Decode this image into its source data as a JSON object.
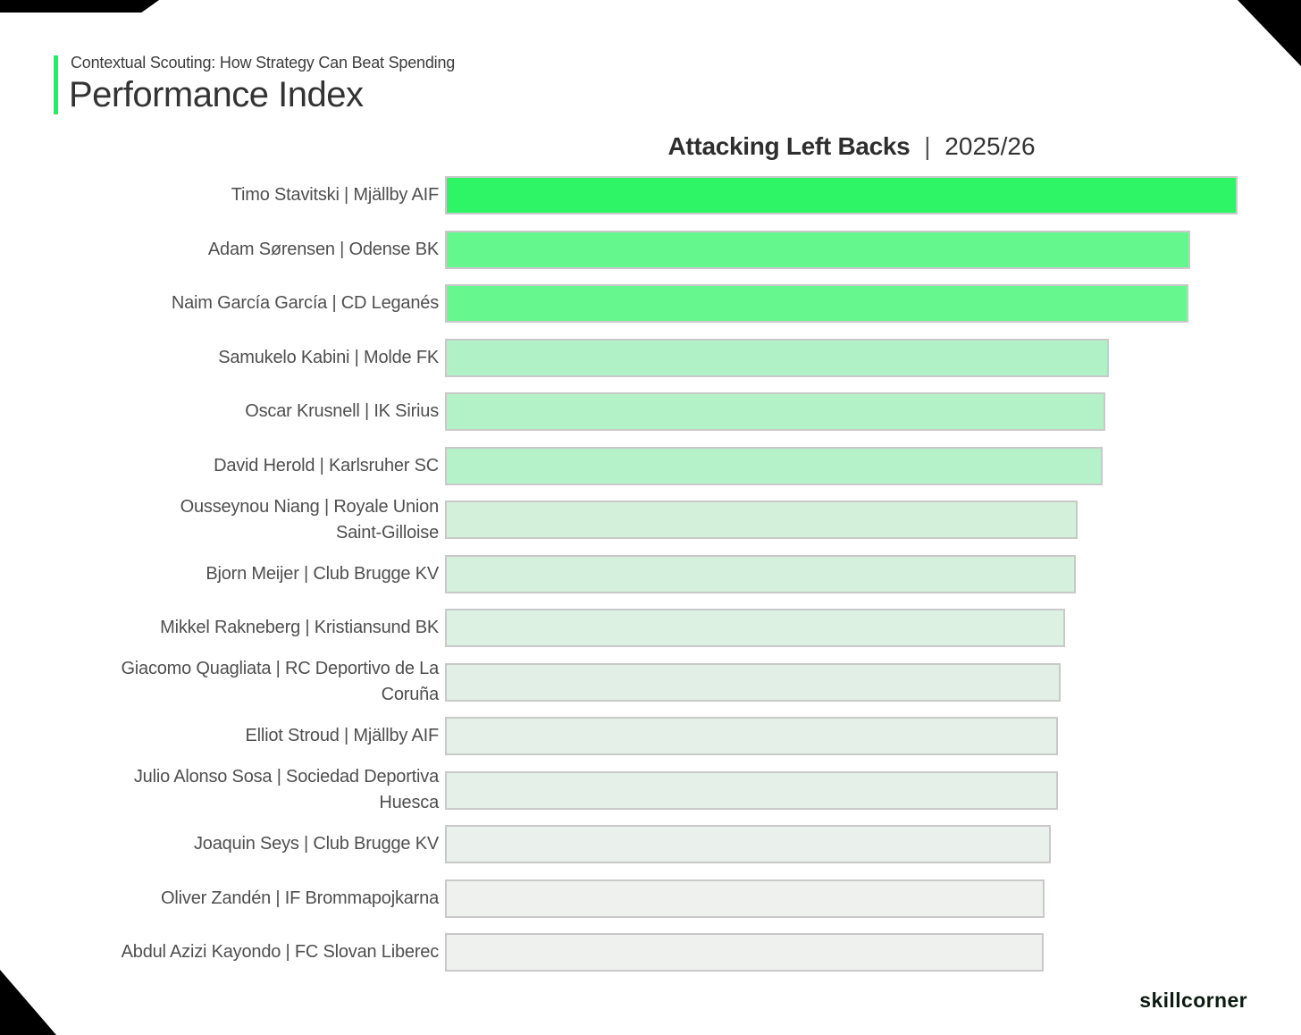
{
  "header": {
    "kicker": "Contextual Scouting: How Strategy Can Beat Spending",
    "title": "Performance Index",
    "accent_color": "#1ef262"
  },
  "chart_title": {
    "bold": "Attacking Left Backs",
    "separator": "|",
    "season": "2025/26"
  },
  "footer": {
    "brand": "skillcorner"
  },
  "chart_data": {
    "type": "bar",
    "orientation": "horizontal",
    "title": "Attacking Left Backs | 2025/26",
    "xlabel": "",
    "ylabel": "",
    "axis_shown": false,
    "value_note": "no numeric axis in image; values are bar lengths as % of plot width (longest bar ~97.5%)",
    "categories": [
      "Timo Stavitski | Mjällby AIF",
      "Adam Sørensen | Odense BK",
      "Naim García García | CD Leganés",
      "Samukelo Kabini | Molde FK",
      "Oscar Krusnell | IK Sirius",
      "David Herold | Karlsruher SC",
      "Ousseynou Niang | Royale Union\nSaint-Gilloise",
      "Bjorn Meijer | Club Brugge KV",
      "Mikkel Rakneberg | Kristiansund BK",
      "Giacomo Quagliata | RC Deportivo de La\nCoruña",
      "Elliot Stroud | Mjällby AIF",
      "Julio Alonso Sosa | Sociedad Deportiva\nHuesca",
      "Joaquin Seys | Club Brugge KV",
      "Oliver Zandén | IF Brommapojkarna",
      "Abdul Azizi Kayondo | FC Slovan Liberec"
    ],
    "values": [
      97.5,
      91.6,
      91.4,
      81.6,
      81.2,
      80.9,
      77.8,
      77.6,
      76.3,
      75.7,
      75.4,
      75.4,
      74.5,
      73.7,
      73.6
    ],
    "bar_colors": [
      "#2ef566",
      "#63f78e",
      "#66f78f",
      "#b0f2c5",
      "#b3f2c7",
      "#b6f2c9",
      "#d3f0db",
      "#d5f0dc",
      "#dcf1e2",
      "#e2efe6",
      "#e4f0e8",
      "#e5f0e8",
      "#eaf0eb",
      "#eff1ef",
      "#eff1ef"
    ],
    "bar_border_color": "#c9c9c9",
    "legend": "none",
    "grid": false
  }
}
